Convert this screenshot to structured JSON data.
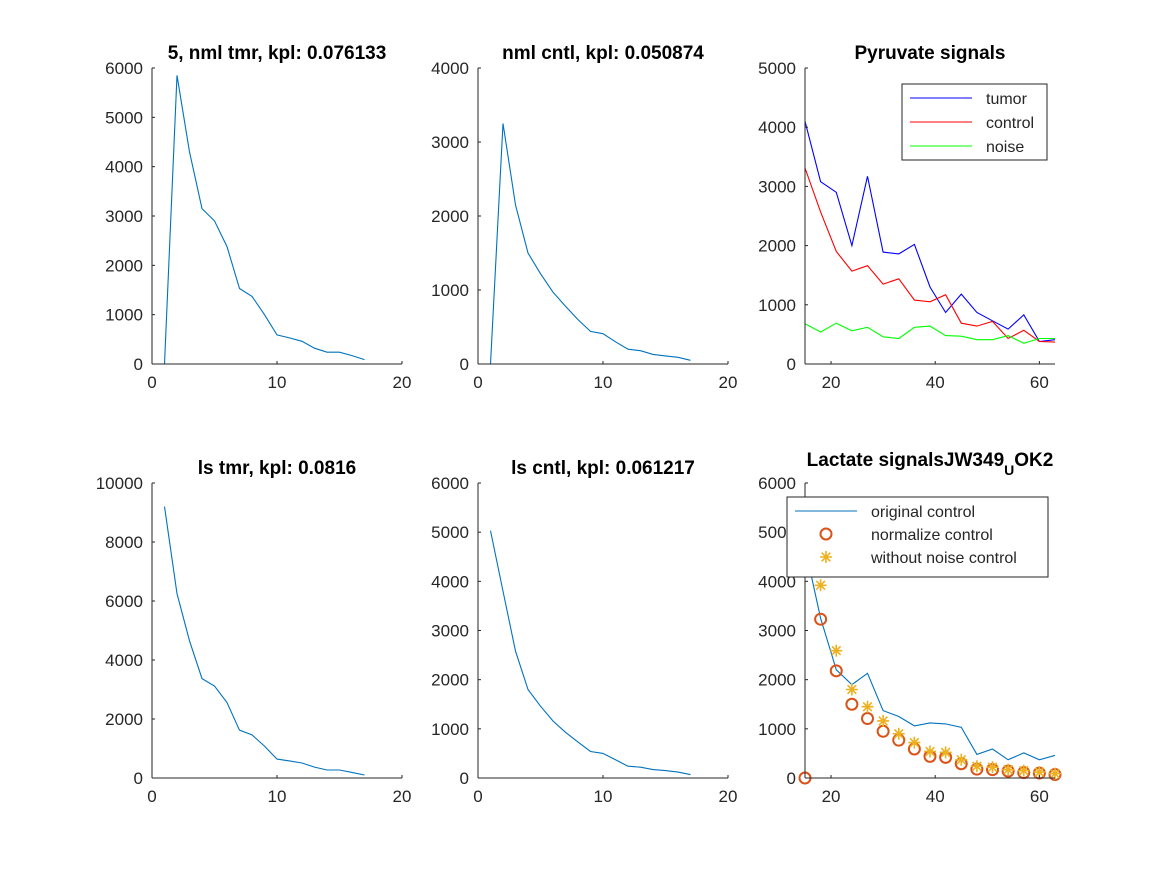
{
  "figure": {
    "background": "#ffffff",
    "axes_color": "#262626"
  },
  "chart_data": [
    {
      "type": "line",
      "title": "5, nml tmr, kpl: 0.076133",
      "xlim": [
        0,
        20
      ],
      "ylim": [
        0,
        6000
      ],
      "xticks": [
        0,
        10,
        20
      ],
      "yticks": [
        0,
        1000,
        2000,
        3000,
        4000,
        5000,
        6000
      ],
      "series": [
        {
          "color": "#0072bd",
          "style": "line",
          "x": [
            1,
            2,
            3,
            4,
            5,
            6,
            7,
            8,
            9,
            10,
            11,
            12,
            13,
            14,
            15,
            16,
            17
          ],
          "y": [
            0,
            5850,
            4300,
            3150,
            2900,
            2380,
            1530,
            1370,
            1000,
            590,
            530,
            460,
            320,
            240,
            240,
            170,
            90
          ]
        }
      ]
    },
    {
      "type": "line",
      "title": "nml cntl, kpl: 0.050874",
      "xlim": [
        0,
        20
      ],
      "ylim": [
        0,
        4000
      ],
      "xticks": [
        0,
        10,
        20
      ],
      "yticks": [
        0,
        1000,
        2000,
        3000,
        4000
      ],
      "series": [
        {
          "color": "#0072bd",
          "style": "line",
          "x": [
            1,
            2,
            3,
            4,
            5,
            6,
            7,
            8,
            9,
            10,
            11,
            12,
            13,
            14,
            15,
            16,
            17
          ],
          "y": [
            0,
            3250,
            2150,
            1500,
            1220,
            970,
            780,
            600,
            440,
            410,
            300,
            200,
            180,
            130,
            110,
            90,
            50
          ]
        }
      ]
    },
    {
      "type": "line",
      "title": "Pyruvate signals",
      "xlim": [
        15,
        63
      ],
      "ylim": [
        0,
        5000
      ],
      "xticks": [
        20,
        40,
        60
      ],
      "yticks": [
        0,
        1000,
        2000,
        3000,
        4000,
        5000
      ],
      "legend": {
        "placement": "top-right"
      },
      "series": [
        {
          "name": "tumor",
          "color": "#0000ff",
          "style": "line",
          "x": [
            15,
            18,
            21,
            24,
            27,
            30,
            33,
            36,
            39,
            42,
            45,
            48,
            51,
            54,
            57,
            60,
            63
          ],
          "y": [
            4100,
            3080,
            2900,
            2000,
            3170,
            1890,
            1860,
            2020,
            1300,
            870,
            1180,
            870,
            730,
            590,
            830,
            380,
            410
          ]
        },
        {
          "name": "control",
          "color": "#ff0000",
          "style": "line",
          "x": [
            15,
            18,
            21,
            24,
            27,
            30,
            33,
            36,
            39,
            42,
            45,
            48,
            51,
            54,
            57,
            60,
            63
          ],
          "y": [
            3310,
            2570,
            1900,
            1570,
            1660,
            1350,
            1440,
            1080,
            1050,
            1170,
            690,
            640,
            720,
            430,
            570,
            380,
            370
          ]
        },
        {
          "name": "noise",
          "color": "#00ff00",
          "style": "line",
          "x": [
            15,
            18,
            21,
            24,
            27,
            30,
            33,
            36,
            39,
            42,
            45,
            48,
            51,
            54,
            57,
            60,
            63
          ],
          "y": [
            680,
            540,
            690,
            560,
            620,
            460,
            430,
            620,
            640,
            480,
            470,
            410,
            410,
            480,
            350,
            430,
            430
          ]
        }
      ]
    },
    {
      "type": "line",
      "title": "ls tmr, kpl: 0.0816",
      "xlim": [
        0,
        20
      ],
      "ylim": [
        0,
        10000
      ],
      "xticks": [
        0,
        10,
        20
      ],
      "yticks": [
        0,
        2000,
        4000,
        6000,
        8000,
        10000
      ],
      "series": [
        {
          "color": "#0072bd",
          "style": "line",
          "x": [
            1,
            2,
            3,
            4,
            5,
            6,
            7,
            8,
            9,
            10,
            11,
            12,
            13,
            14,
            15,
            16,
            17
          ],
          "y": [
            9200,
            6250,
            4650,
            3370,
            3120,
            2560,
            1620,
            1460,
            1080,
            640,
            580,
            510,
            370,
            270,
            270,
            190,
            100
          ]
        }
      ]
    },
    {
      "type": "line",
      "title": "ls cntl, kpl: 0.061217",
      "xlim": [
        0,
        20
      ],
      "ylim": [
        0,
        6000
      ],
      "xticks": [
        0,
        10,
        20
      ],
      "yticks": [
        0,
        1000,
        2000,
        3000,
        4000,
        5000,
        6000
      ],
      "series": [
        {
          "color": "#0072bd",
          "style": "line",
          "x": [
            1,
            2,
            3,
            4,
            5,
            6,
            7,
            8,
            9,
            10,
            11,
            12,
            13,
            14,
            15,
            16,
            17
          ],
          "y": [
            5030,
            3800,
            2580,
            1800,
            1460,
            1160,
            930,
            730,
            540,
            500,
            370,
            240,
            220,
            170,
            150,
            120,
            70
          ]
        }
      ]
    },
    {
      "type": "line",
      "title": "Lactate signalsJW349",
      "title_subscript": "U",
      "title_suffix": "OK2",
      "xlim": [
        15,
        63
      ],
      "ylim": [
        0,
        6000
      ],
      "xticks": [
        20,
        40,
        60
      ],
      "yticks": [
        0,
        1000,
        2000,
        3000,
        4000,
        5000,
        6000
      ],
      "legend": {
        "placement": "top-left"
      },
      "series": [
        {
          "name": "original control",
          "color": "#0072bd",
          "style": "line",
          "x": [
            15,
            18,
            21,
            24,
            27,
            30,
            33,
            36,
            39,
            42,
            45,
            48,
            51,
            54,
            57,
            60,
            63
          ],
          "y": [
            4700,
            3250,
            2200,
            1900,
            2130,
            1370,
            1250,
            1060,
            1120,
            1100,
            1030,
            480,
            590,
            370,
            510,
            370,
            460
          ]
        },
        {
          "name": "normalize control",
          "color": "#d95319",
          "style": "circle",
          "x": [
            15,
            18,
            21,
            24,
            27,
            30,
            33,
            36,
            39,
            42,
            45,
            48,
            51,
            54,
            57,
            60,
            63
          ],
          "y": [
            0,
            3230,
            2180,
            1500,
            1210,
            950,
            770,
            590,
            440,
            420,
            290,
            180,
            170,
            140,
            110,
            100,
            70
          ]
        },
        {
          "name": "without noise control",
          "color": "#edb120",
          "style": "star",
          "x": [
            18,
            21,
            24,
            27,
            30,
            33,
            36,
            39,
            42,
            45,
            48,
            51,
            54,
            57,
            60,
            63
          ],
          "y": [
            3920,
            2590,
            1800,
            1450,
            1160,
            900,
            720,
            540,
            520,
            370,
            240,
            220,
            170,
            150,
            120,
            90
          ]
        }
      ]
    }
  ]
}
